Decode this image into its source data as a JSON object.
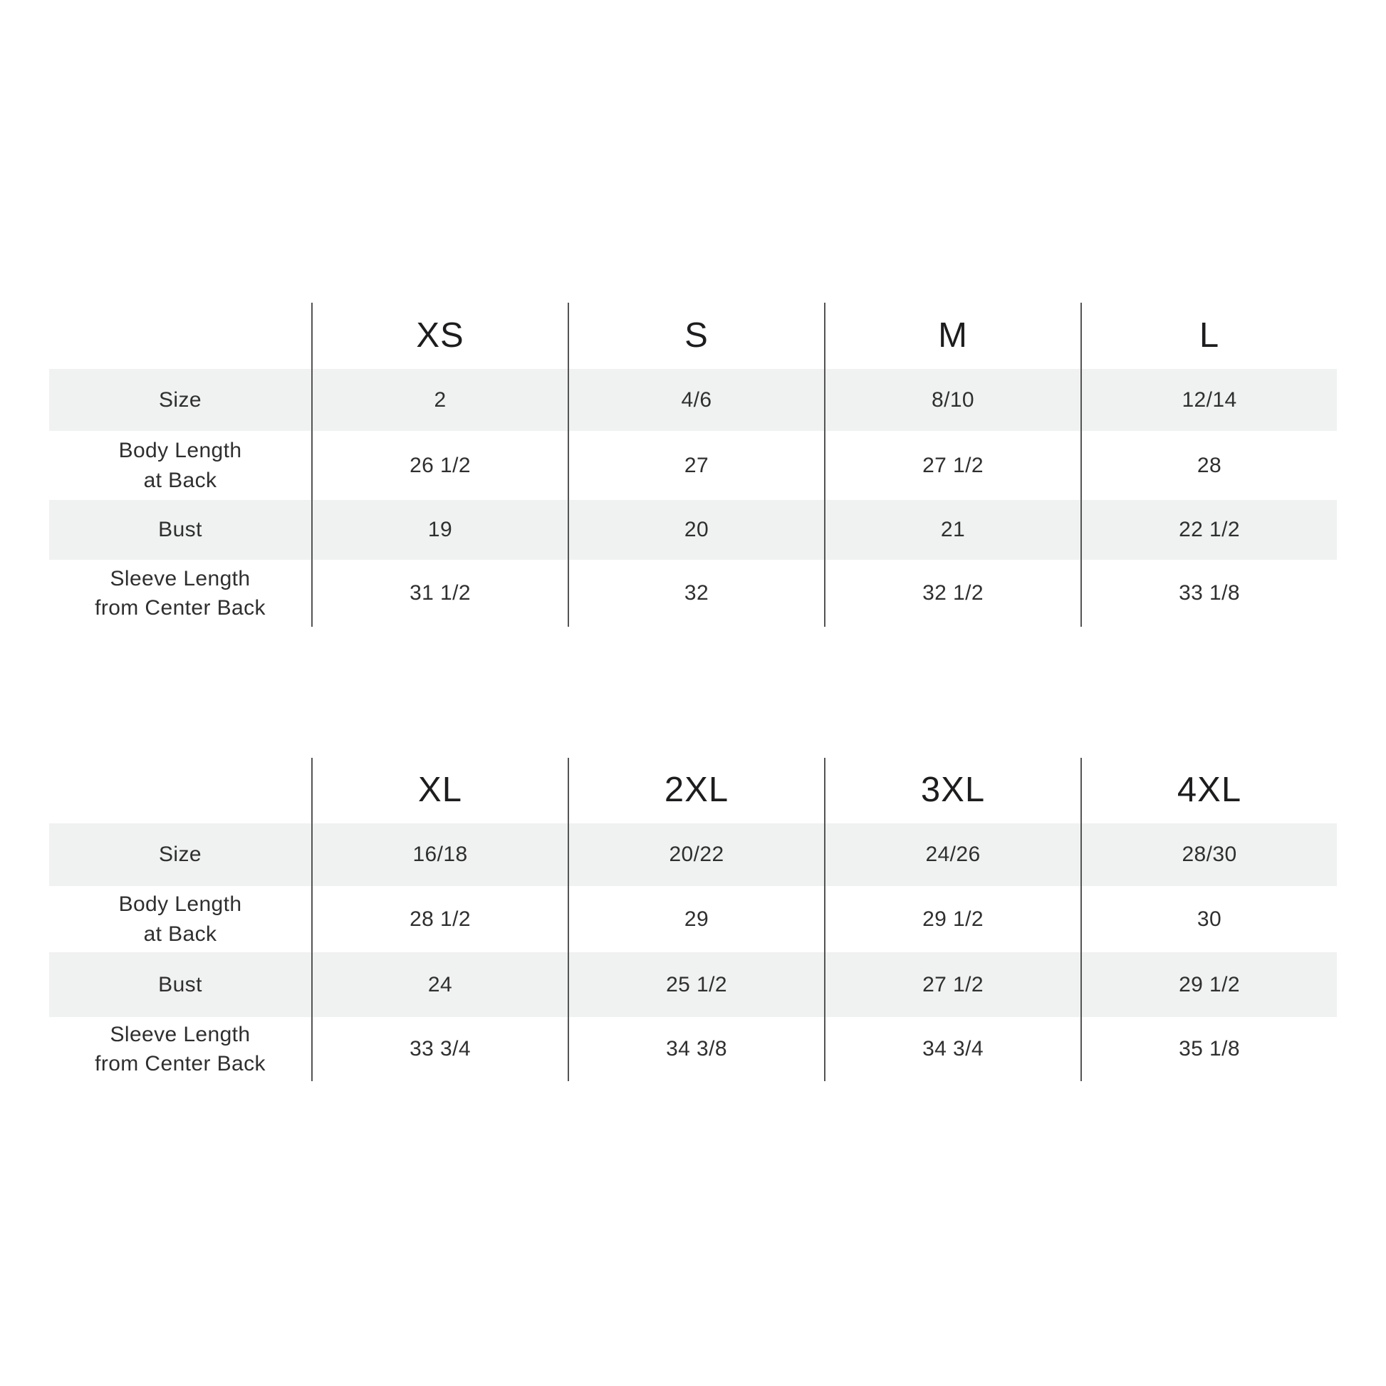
{
  "page": {
    "background_color": "#ffffff",
    "band_color": "#f0f1f1",
    "grid_line_color": "#545456",
    "text_color": "#2f2f30"
  },
  "chart_data": [
    {
      "type": "table",
      "name": "size-chart-xs-to-l",
      "columns": [
        "XS",
        "S",
        "M",
        "L"
      ],
      "rows": [
        {
          "label": "Size",
          "values": [
            "2",
            "4/6",
            "8/10",
            "12/14"
          ]
        },
        {
          "label": "Body Length\nat Back",
          "values": [
            "26 1/2",
            "27",
            "27 1/2",
            "28"
          ]
        },
        {
          "label": "Bust",
          "values": [
            "19",
            "20",
            "21",
            "22 1/2"
          ]
        },
        {
          "label": "Sleeve Length\nfrom Center Back",
          "values": [
            "31 1/2",
            "32",
            "32 1/2",
            "33 1/8"
          ]
        }
      ],
      "layout": {
        "banded_rows": [
          "Size",
          "Bust"
        ],
        "grid": "vertical-lines-only"
      }
    },
    {
      "type": "table",
      "name": "size-chart-xl-to-4xl",
      "columns": [
        "XL",
        "2XL",
        "3XL",
        "4XL"
      ],
      "rows": [
        {
          "label": "Size",
          "values": [
            "16/18",
            "20/22",
            "24/26",
            "28/30"
          ]
        },
        {
          "label": "Body Length\nat Back",
          "values": [
            "28 1/2",
            "29",
            "29 1/2",
            "30"
          ]
        },
        {
          "label": "Bust",
          "values": [
            "24",
            "25 1/2",
            "27 1/2",
            "29 1/2"
          ]
        },
        {
          "label": "Sleeve Length\nfrom Center Back",
          "values": [
            "33 3/4",
            "34 3/8",
            "34 3/4",
            "35 1/8"
          ]
        }
      ],
      "layout": {
        "banded_rows": [
          "Size",
          "Bust"
        ],
        "grid": "vertical-lines-only"
      }
    }
  ]
}
